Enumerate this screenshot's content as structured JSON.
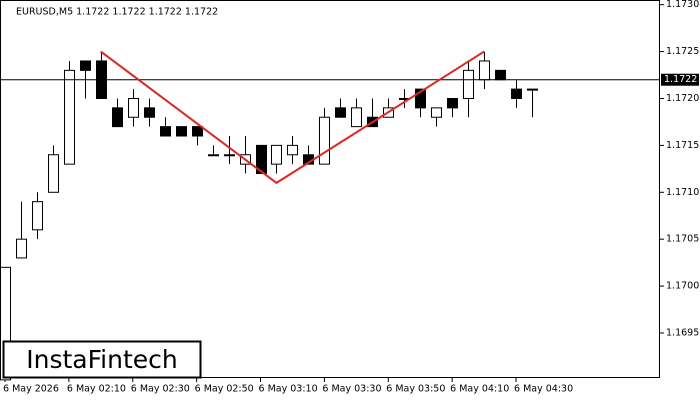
{
  "chart_data": {
    "type": "candlestick",
    "title": "EURUSD,M5  1.1722 1.1722 1.1722 1.1722",
    "watermark": "InstaFintech",
    "categories": [
      "6 May 2026",
      null,
      null,
      null,
      "6 May 02:10",
      null,
      null,
      null,
      "6 May 02:30",
      null,
      null,
      null,
      "6 May 02:50",
      null,
      null,
      null,
      "6 May 03:10",
      null,
      null,
      null,
      "6 May 03:30",
      null,
      null,
      null,
      "6 May 03:50",
      null,
      null,
      null,
      "6 May 04:10",
      null,
      null,
      null,
      "6 May 04:30",
      null
    ],
    "open": [
      1.169,
      1.1703,
      1.1706,
      1.171,
      1.1713,
      1.1724,
      1.1724,
      1.1719,
      1.1718,
      1.1719,
      1.1717,
      1.1717,
      1.1717,
      1.1714,
      1.1714,
      1.1713,
      1.1715,
      1.1713,
      1.1714,
      1.1714,
      1.1713,
      1.1719,
      1.1717,
      1.1718,
      1.1718,
      1.172,
      1.1721,
      1.1718,
      1.172,
      1.172,
      1.1722,
      1.1723,
      1.1721,
      1.1721
    ],
    "high": [
      1.1702,
      1.1709,
      1.171,
      1.1715,
      1.1724,
      1.1724,
      1.1725,
      1.172,
      1.1721,
      1.172,
      1.1718,
      1.1717,
      1.1717,
      1.1715,
      1.1716,
      1.1716,
      1.1715,
      1.1715,
      1.1716,
      1.1715,
      1.1719,
      1.172,
      1.172,
      1.172,
      1.172,
      1.1721,
      1.1721,
      1.1719,
      1.172,
      1.1724,
      1.1725,
      1.1723,
      1.1722,
      1.1721
    ],
    "low": [
      1.169,
      1.1703,
      1.1705,
      1.171,
      1.1713,
      1.172,
      1.172,
      1.1717,
      1.1717,
      1.1717,
      1.1716,
      1.1716,
      1.1715,
      1.1714,
      1.1713,
      1.1712,
      1.1712,
      1.1712,
      1.1713,
      1.1713,
      1.1713,
      1.1718,
      1.1717,
      1.1717,
      1.1718,
      1.1719,
      1.1718,
      1.1717,
      1.1718,
      1.1718,
      1.1721,
      1.1722,
      1.1719,
      1.1718
    ],
    "close": [
      1.1702,
      1.1705,
      1.1709,
      1.1714,
      1.1723,
      1.1723,
      1.172,
      1.1717,
      1.172,
      1.1718,
      1.1716,
      1.1716,
      1.1716,
      1.1714,
      1.1714,
      1.1714,
      1.1712,
      1.1715,
      1.1715,
      1.1713,
      1.1718,
      1.1718,
      1.1719,
      1.1717,
      1.1719,
      1.172,
      1.1719,
      1.1719,
      1.1719,
      1.1723,
      1.1724,
      1.1722,
      1.172,
      1.1721
    ],
    "up_color": "#ffffff",
    "down_color": "#000000",
    "last_price": 1.1722,
    "pattern": {
      "color": "#e8231e",
      "x": [
        6,
        17,
        30
      ],
      "values": [
        1.1725,
        1.1711,
        1.1725
      ]
    },
    "ylim": [
      1.16902,
      1.17305
    ],
    "yticks": [
      {
        "value": 1.1695,
        "label": "1.1695"
      },
      {
        "value": 1.17,
        "label": "1.1700"
      },
      1.1705,
      {
        "value": 1.171,
        "label": "1.1710"
      },
      1.1715,
      {
        "value": 1.172,
        "label": "1.1720"
      },
      1.1725,
      {
        "value": 1.173,
        "label": "1.1730"
      }
    ]
  }
}
